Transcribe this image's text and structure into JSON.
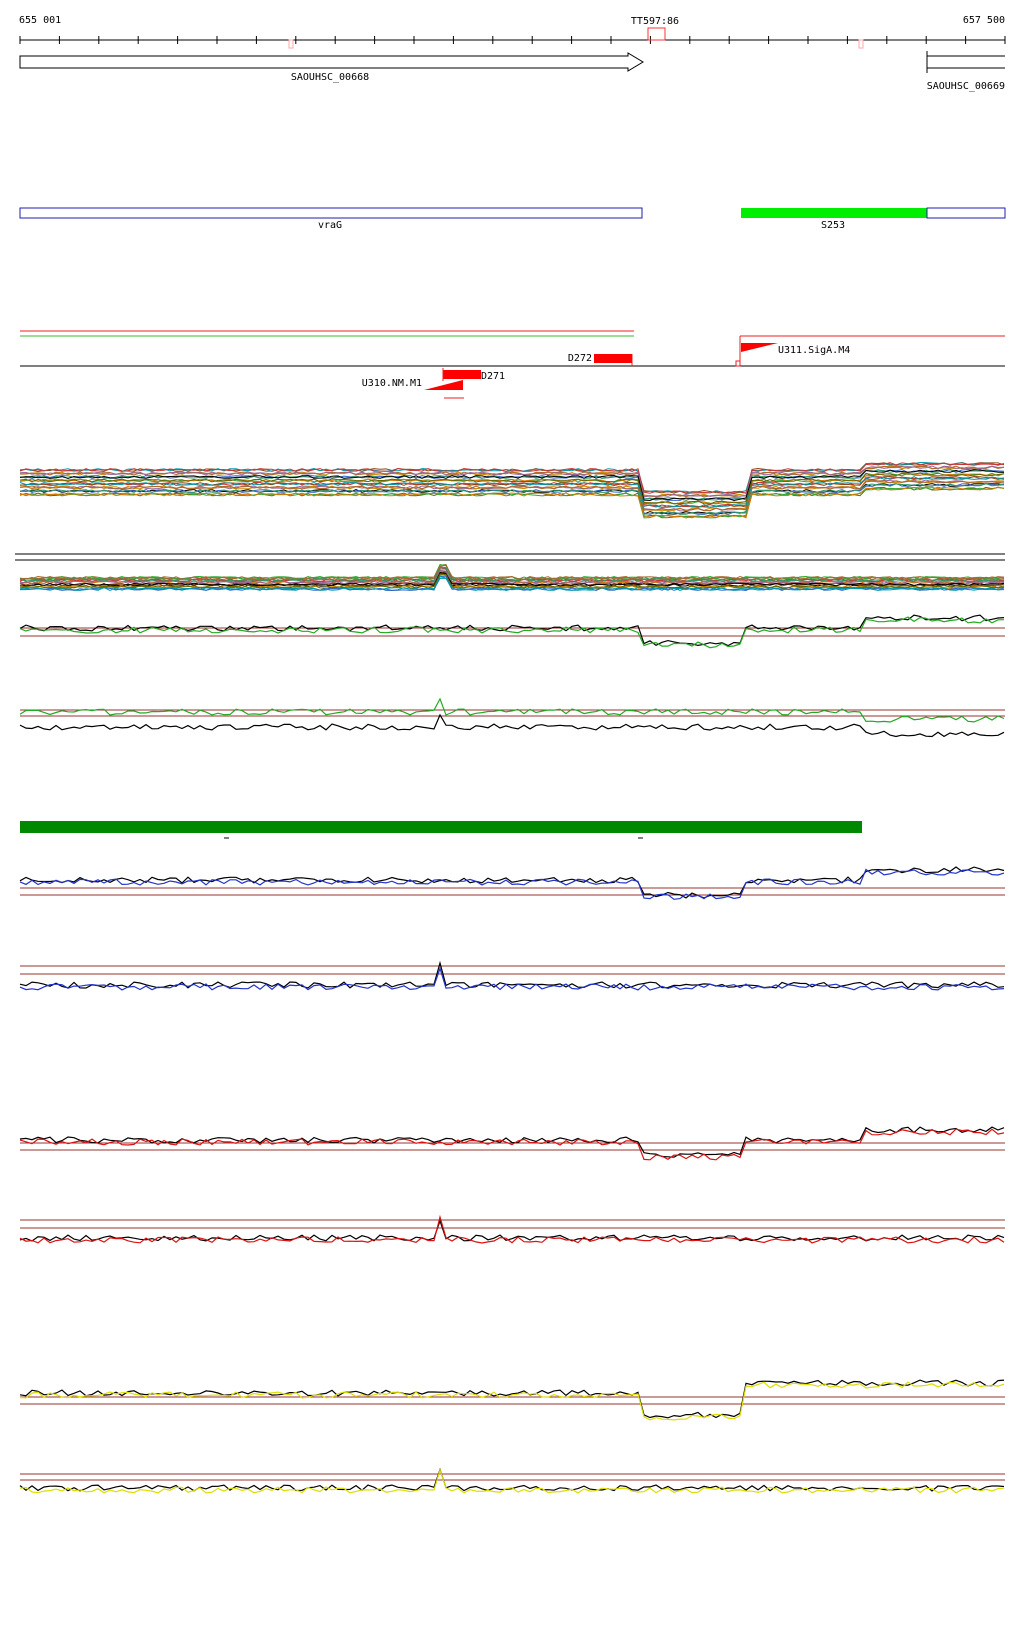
{
  "ruler": {
    "start_label": "655 001",
    "end_label": "657 500",
    "marker_label": "TT597:86"
  },
  "genes": {
    "forward": {
      "label": "SAOUHSC_00668"
    },
    "reverse": {
      "label": "SAOUHSC_00669"
    }
  },
  "annotations": {
    "gene_bar": {
      "label": "vraG"
    },
    "srna_bar": {
      "label": "S253"
    }
  },
  "regulatory": {
    "d272": "D272",
    "u311": "U311.SigA.M4",
    "d271": "D271",
    "u310": "U310.NM.M1"
  },
  "colors": {
    "blue_outline": "#1f1fb0",
    "bright_green": "#00ee00",
    "dark_green": "#008800",
    "red": "#ff0000",
    "brown_ref": "#993333",
    "profile_green": "#22aa22",
    "profile_blue": "#2233cc",
    "profile_red": "#dd1111",
    "profile_yellow": "#dddd00"
  }
}
